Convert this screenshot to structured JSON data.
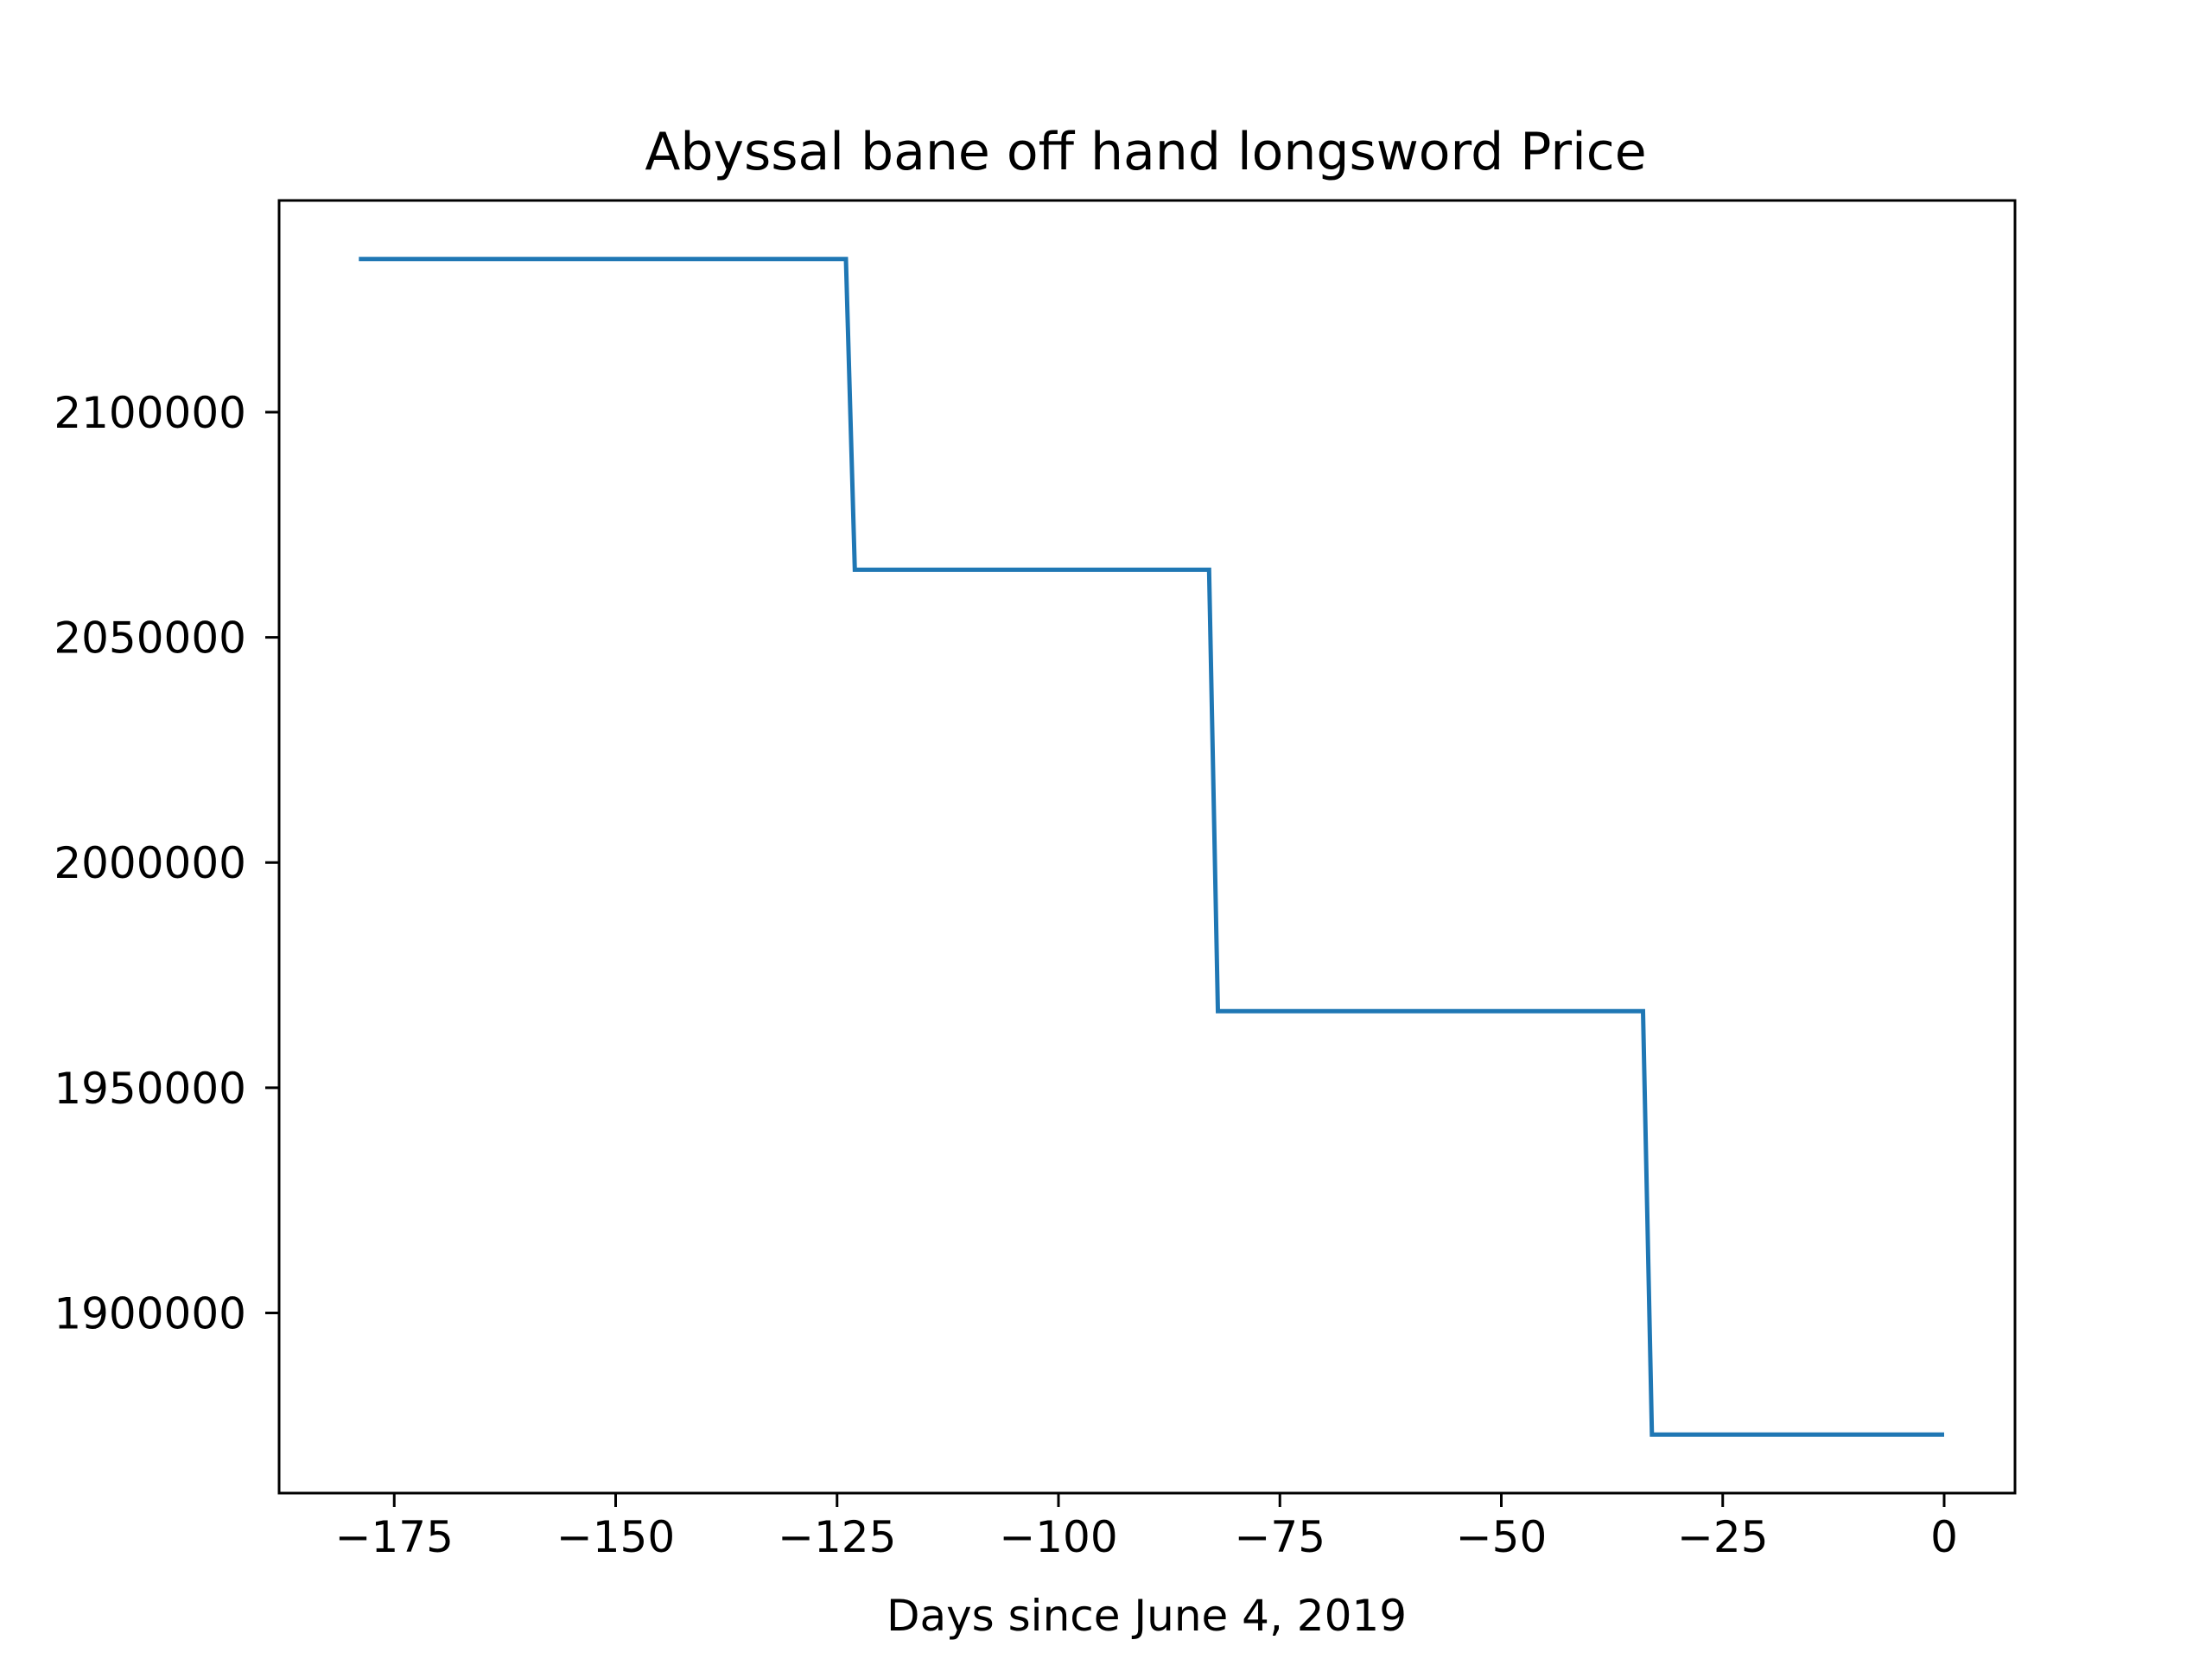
{
  "chart_data": {
    "type": "line",
    "title": "Abyssal bane off hand longsword Price",
    "xlabel": "Days since June 4, 2019",
    "ylabel": "",
    "xlim": [
      -188,
      8
    ],
    "ylim": [
      1860000,
      2147000
    ],
    "x_ticks": [
      -175,
      -150,
      -125,
      -100,
      -75,
      -50,
      -25,
      0
    ],
    "x_tick_labels": [
      "−175",
      "−150",
      "−125",
      "−100",
      "−75",
      "−50",
      "−25",
      "0"
    ],
    "y_ticks": [
      1900000,
      1950000,
      2000000,
      2050000,
      2100000
    ],
    "y_tick_labels": [
      "1900000",
      "1950000",
      "2000000",
      "2050000",
      "2100000"
    ],
    "grid": false,
    "series": [
      {
        "color": "#1f77b4",
        "x": [
          -179,
          -124,
          -123,
          -83,
          -82,
          -34,
          -33,
          0
        ],
        "y": [
          2134000,
          2134000,
          2065000,
          2065000,
          1967000,
          1967000,
          1873000,
          1873000
        ]
      }
    ]
  }
}
